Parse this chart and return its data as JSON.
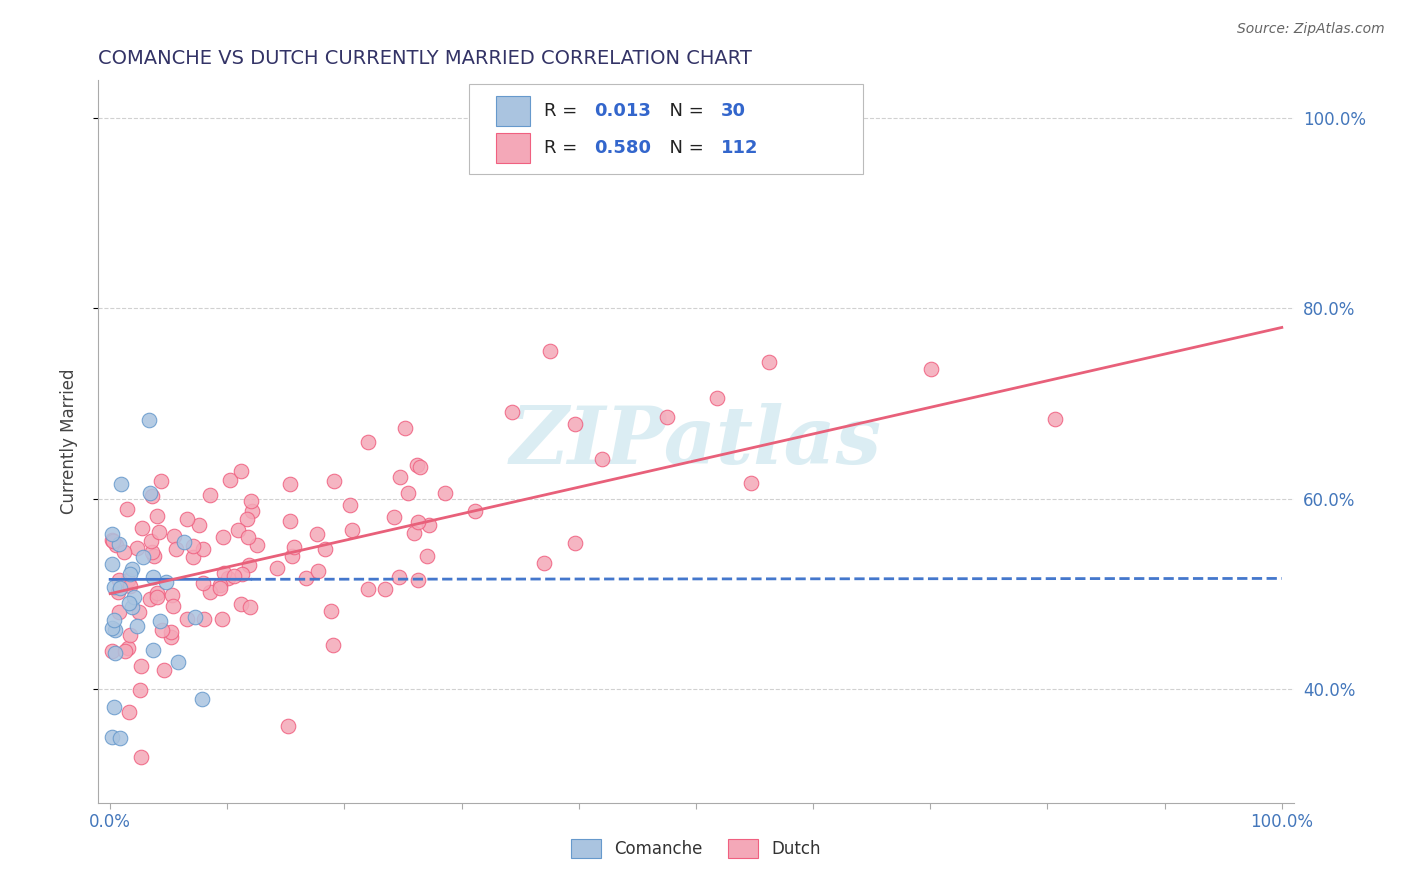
{
  "title": "COMANCHE VS DUTCH CURRENTLY MARRIED CORRELATION CHART",
  "source": "Source: ZipAtlas.com",
  "ylabel": "Currently Married",
  "title_color": "#333366",
  "title_fontsize": 14,
  "background_color": "#ffffff",
  "grid_color": "#cccccc",
  "comanche_color": "#aac4e0",
  "dutch_color": "#f4a8b8",
  "comanche_edge_color": "#6699cc",
  "dutch_edge_color": "#f06080",
  "comanche_line_color": "#4477cc",
  "dutch_line_color": "#e8607a",
  "legend_r_comanche": "0.013",
  "legend_n_comanche": "30",
  "legend_r_dutch": "0.580",
  "legend_n_dutch": "112",
  "r_comanche": 0.013,
  "n_comanche": 30,
  "r_dutch": 0.58,
  "n_dutch": 112,
  "ytick_positions": [
    0.4,
    0.6,
    0.8,
    1.0
  ],
  "ytick_labels": [
    "40.0%",
    "60.0%",
    "80.0%",
    "100.0%"
  ],
  "ylim": [
    0.28,
    1.04
  ],
  "xlim": [
    -0.01,
    1.01
  ],
  "watermark_color": "#b8dce8",
  "watermark_alpha": 0.5,
  "seed_comanche": 12,
  "seed_dutch": 99
}
